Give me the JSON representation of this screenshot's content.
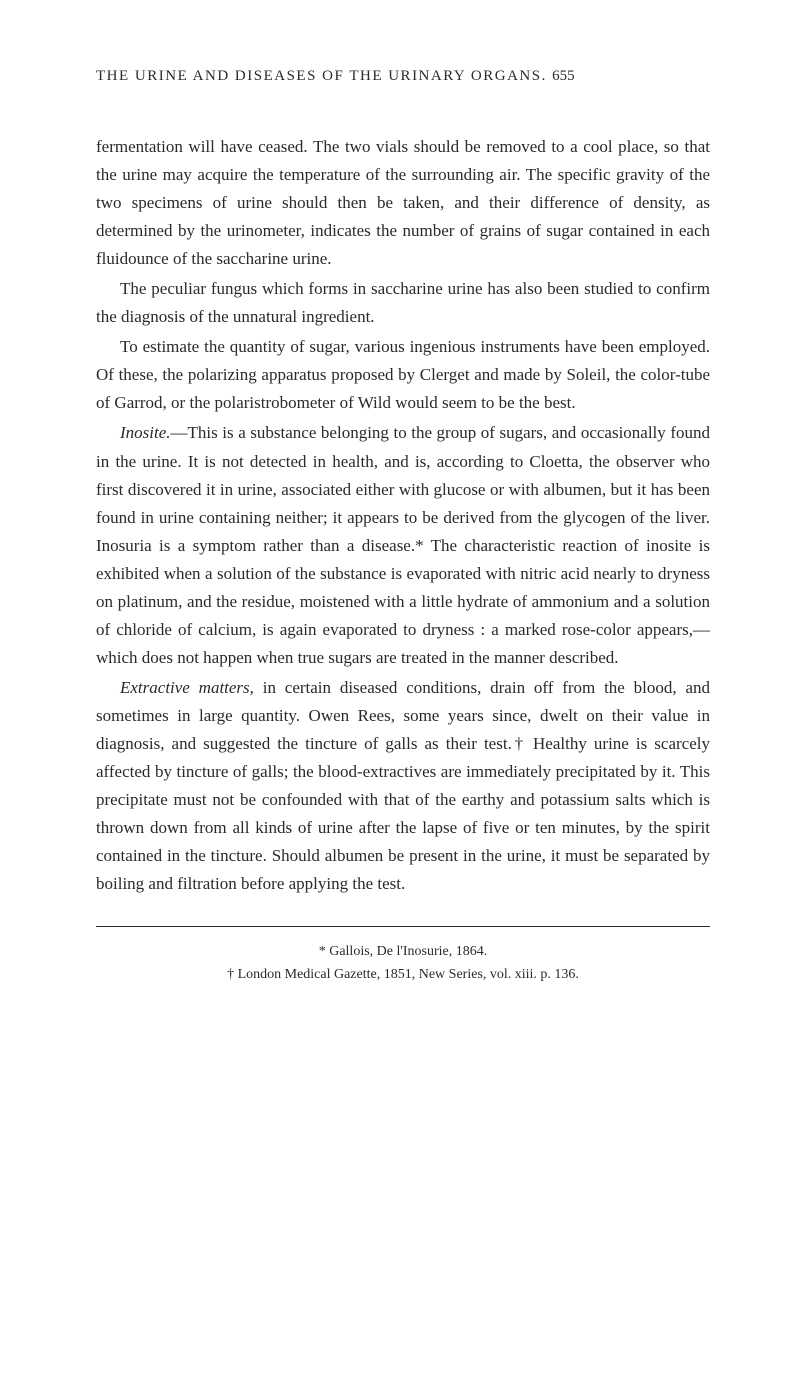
{
  "header": {
    "title": "THE URINE AND DISEASES OF THE URINARY ORGANS.",
    "pageNumber": "655"
  },
  "paragraphs": {
    "p1_a": "fermentation will have ceased.   The two vials should be removed to a cool place, so that the urine may acquire the temperature of the surrounding air.   The specific gravity of the two specimens of urine should then be taken, and their difference of density, as determined by the urinometer, indicates the number of grains of sugar contained in each fluidounce of the saccharine urine.",
    "p2": "The peculiar fungus which forms in saccharine urine has also been studied to confirm the diagnosis of the unnatural ingredient.",
    "p3": "To estimate the quantity of sugar, various ingenious instruments have been employed.   Of these, the polarizing apparatus proposed by Clerget and made by Soleil, the color-tube of Garrod, or the polaristrobometer of Wild would seem to be the best.",
    "p4_term": "Inosite.",
    "p4_body": "—This is a substance belonging to the group of sugars, and occasionally found in the urine.   It is not detected in health, and is, according to Cloetta, the observer who first discovered it in urine, associated either with glucose or with albumen, but it has been found in urine containing neither; it appears to be derived from the glycogen of the liver.   Inosuria is a symptom rather than a disease.*   The characteristic reaction of inosite is exhibited when a solution of the substance is evaporated with nitric acid nearly to dryness on platinum, and the residue, moistened with a little hydrate of ammonium and a solution of chloride of calcium, is again evaporated to dryness : a marked rose-color appears,—which does not happen when true sugars are treated in the manner described.",
    "p5_term": "Extractive matters,",
    "p5_body": " in certain diseased conditions, drain off from the blood, and sometimes in large quantity.   Owen Rees, some years since, dwelt on their value in diagnosis, and suggested the tincture of galls as their test.†   Healthy urine is scarcely affected by tincture of galls; the blood-extractives are immediately precipitated by it.   This precipitate must not be confounded with that of the earthy and potassium salts which is thrown down from all kinds of urine after the lapse of five or ten minutes, by the spirit contained in the tincture.   Should albumen be present in the urine, it must be separated by boiling and filtration before applying the test."
  },
  "footnotes": {
    "fn1": "* Gallois, De l'Inosurie, 1864.",
    "fn2": "† London Medical Gazette, 1851, New Series, vol. xiii. p. 136."
  },
  "colors": {
    "background": "#ffffff",
    "text": "#2a2a2a"
  },
  "typography": {
    "body_fontsize": 17,
    "header_fontsize": 15,
    "footnote_fontsize": 14,
    "line_height": 1.65,
    "font_family": "Georgia, Times New Roman, serif"
  }
}
